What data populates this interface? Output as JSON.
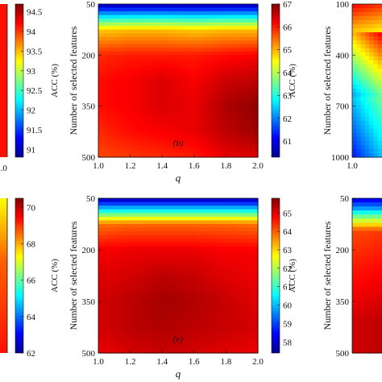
{
  "colors": {
    "colormap": [
      "#00008f",
      "#0000ff",
      "#0080ff",
      "#00ffff",
      "#80ff80",
      "#ffff00",
      "#ff8000",
      "#ff0000",
      "#800000"
    ]
  },
  "chart_data": [
    {
      "panel": "a",
      "type": "heatmap",
      "visibility": "partial-left-cropped",
      "colorbar": {
        "label": "ACC (%)",
        "ticks": [
          "91",
          "91.5",
          "92",
          "92.5",
          "93",
          "93.5",
          "94",
          "94.5"
        ],
        "range": [
          90.8,
          94.7
        ]
      },
      "x_tick_visible": [
        "2.0"
      ]
    },
    {
      "panel": "b",
      "type": "heatmap",
      "panel_label": "(b)",
      "xlabel": "q",
      "ylabel": "Number of selected features",
      "x_ticks": [
        "1.0",
        "1.2",
        "1.4",
        "1.6",
        "1.8",
        "2.0"
      ],
      "xlim": [
        1.0,
        2.0
      ],
      "y_ticks": [
        "50",
        "200",
        "350",
        "500"
      ],
      "ylim": [
        50,
        500
      ],
      "colorbar": {
        "label": "ACC (%)",
        "ticks": [
          "61",
          "62",
          "63",
          "64",
          "65",
          "66",
          "67"
        ],
        "range": [
          60.3,
          67.0
        ]
      },
      "x": [
        1.0,
        1.2,
        1.4,
        1.6,
        1.8,
        2.0
      ],
      "y": [
        50,
        125,
        200,
        275,
        350,
        425,
        500
      ],
      "z": [
        [
          60.5,
          60.5,
          60.5,
          60.5,
          60.5,
          60.5
        ],
        [
          64.8,
          64.9,
          64.9,
          64.8,
          64.9,
          64.9
        ],
        [
          65.9,
          66.0,
          66.0,
          66.0,
          66.1,
          66.2
        ],
        [
          66.1,
          66.2,
          66.4,
          66.2,
          66.5,
          66.6
        ],
        [
          66.1,
          66.2,
          66.4,
          66.3,
          66.7,
          66.9
        ],
        [
          65.9,
          66.1,
          66.2,
          66.3,
          66.6,
          66.8
        ],
        [
          65.7,
          65.8,
          65.9,
          66.0,
          66.3,
          66.4
        ]
      ]
    },
    {
      "panel": "c",
      "type": "heatmap",
      "visibility": "partial-right-cropped",
      "ylabel": "Number of selected features",
      "y_ticks": [
        "100",
        "400",
        "700",
        "1000"
      ],
      "x_tick_visible": [
        "1.0"
      ]
    },
    {
      "panel": "d",
      "type": "heatmap",
      "visibility": "partial-left-cropped",
      "colorbar": {
        "label": "ACC (%)",
        "ticks": [
          "62",
          "64",
          "66",
          "68",
          "70"
        ],
        "range": [
          62.0,
          70.5
        ]
      }
    },
    {
      "panel": "e",
      "type": "heatmap",
      "panel_label": "(e)",
      "xlabel": "q",
      "ylabel": "Number of selected features",
      "x_ticks": [
        "1.0",
        "1.2",
        "1.4",
        "1.6",
        "1.8",
        "2.0"
      ],
      "xlim": [
        1.0,
        2.0
      ],
      "y_ticks": [
        "50",
        "200",
        "350",
        "500"
      ],
      "ylim": [
        50,
        500
      ],
      "colorbar": {
        "label": "ACC (%)",
        "ticks": [
          "58",
          "59",
          "60",
          "61",
          "62",
          "63",
          "64",
          "65"
        ],
        "range": [
          57.4,
          65.8
        ]
      },
      "x": [
        1.0,
        1.2,
        1.4,
        1.6,
        1.8,
        2.0
      ],
      "y": [
        50,
        125,
        200,
        275,
        350,
        425,
        500
      ],
      "z": [
        [
          57.6,
          57.6,
          57.6,
          57.6,
          57.6,
          57.6
        ],
        [
          63.8,
          63.9,
          63.9,
          63.9,
          63.9,
          63.8
        ],
        [
          64.8,
          64.9,
          64.9,
          64.9,
          64.8,
          64.8
        ],
        [
          65.0,
          65.1,
          65.3,
          65.2,
          65.0,
          64.9
        ],
        [
          65.1,
          65.3,
          65.5,
          65.4,
          65.2,
          65.0
        ],
        [
          65.1,
          65.3,
          65.4,
          65.3,
          65.2,
          65.1
        ],
        [
          64.9,
          65.1,
          65.2,
          65.1,
          65.0,
          64.9
        ]
      ]
    },
    {
      "panel": "f",
      "type": "heatmap",
      "visibility": "partial-right-cropped",
      "ylabel": "Number of selected features",
      "y_ticks": [
        "50",
        "200",
        "350",
        "500"
      ]
    }
  ]
}
